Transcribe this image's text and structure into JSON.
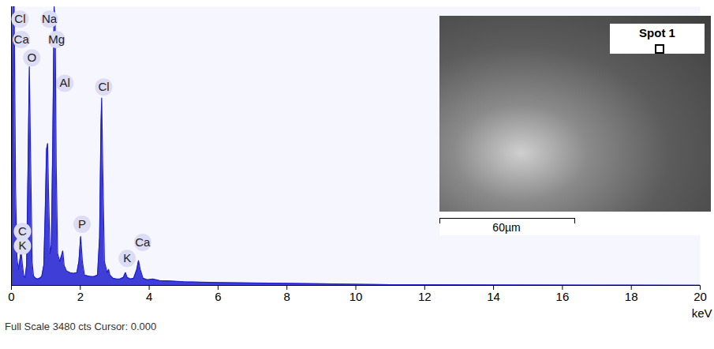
{
  "chart_data": {
    "type": "area",
    "color": "#1f1fd0",
    "x": [
      0.0,
      0.04,
      0.08,
      0.12,
      0.16,
      0.2,
      0.24,
      0.28,
      0.32,
      0.36,
      0.4,
      0.44,
      0.48,
      0.52,
      0.56,
      0.6,
      0.64,
      0.7,
      0.76,
      0.82,
      0.88,
      0.94,
      0.98,
      1.02,
      1.05,
      1.08,
      1.12,
      1.16,
      1.2,
      1.24,
      1.27,
      1.3,
      1.34,
      1.4,
      1.46,
      1.49,
      1.53,
      1.6,
      1.7,
      1.8,
      1.9,
      1.96,
      2.01,
      2.06,
      2.12,
      2.2,
      2.3,
      2.4,
      2.5,
      2.56,
      2.6,
      2.62,
      2.65,
      2.7,
      2.78,
      2.82,
      2.86,
      2.95,
      3.05,
      3.15,
      3.25,
      3.31,
      3.36,
      3.45,
      3.55,
      3.64,
      3.69,
      3.74,
      3.82,
      3.95,
      4.1,
      4.3,
      4.6,
      5.0,
      5.5,
      6.0,
      7.0,
      8.0,
      9.0,
      10.0,
      11.0,
      12.0,
      14.0,
      16.0,
      18.0,
      20.0
    ],
    "values": [
      0,
      3480,
      3480,
      1200,
      350,
      200,
      300,
      430,
      250,
      120,
      100,
      250,
      1400,
      2730,
      1500,
      300,
      120,
      90,
      80,
      90,
      110,
      250,
      900,
      1700,
      1770,
      1100,
      400,
      500,
      1800,
      3480,
      3300,
      1500,
      400,
      300,
      380,
      430,
      250,
      180,
      160,
      150,
      160,
      300,
      610,
      300,
      130,
      120,
      110,
      110,
      130,
      600,
      2000,
      2340,
      1500,
      300,
      160,
      200,
      130,
      90,
      80,
      80,
      100,
      160,
      100,
      80,
      90,
      200,
      310,
      200,
      90,
      70,
      80,
      60,
      55,
      45,
      40,
      35,
      30,
      25,
      20,
      15,
      10,
      8,
      6,
      4,
      3,
      2
    ],
    "xlim": [
      0,
      20
    ],
    "xticks": [
      0,
      2,
      4,
      6,
      8,
      10,
      12,
      14,
      16,
      18,
      20
    ],
    "ylim": [
      0,
      3480
    ],
    "tick_labels": "x",
    "x_label": "keV",
    "caption": "Full Scale 3480 cts Cursor: 0.000",
    "annotations": [
      {
        "text": "Cl",
        "x": 0.25,
        "y": 3325
      },
      {
        "text": "Na",
        "x": 1.1,
        "y": 3325
      },
      {
        "text": "Ca",
        "x": 0.29,
        "y": 3070
      },
      {
        "text": "Mg",
        "x": 1.31,
        "y": 3070
      },
      {
        "text": "O",
        "x": 0.59,
        "y": 2842
      },
      {
        "text": "Al",
        "x": 1.55,
        "y": 2523
      },
      {
        "text": "Cl",
        "x": 2.68,
        "y": 2478
      },
      {
        "text": "C",
        "x": 0.32,
        "y": 674
      },
      {
        "text": "K",
        "x": 0.32,
        "y": 492
      },
      {
        "text": "P",
        "x": 2.05,
        "y": 765
      },
      {
        "text": "Ca",
        "x": 3.81,
        "y": 537
      },
      {
        "text": "K",
        "x": 3.36,
        "y": 337
      }
    ]
  },
  "inset": {
    "label": "Spot 1",
    "scale_bar": "60µm"
  }
}
